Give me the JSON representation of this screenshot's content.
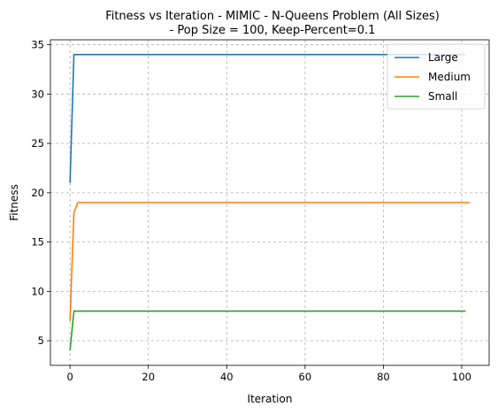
{
  "chart_data": {
    "type": "line",
    "title_lines": [
      "Fitness vs Iteration - MIMIC - N-Queens Problem (All Sizes)",
      "- Pop Size = 100, Keep-Percent=0.1"
    ],
    "xlabel": "Iteration",
    "ylabel": "Fitness",
    "xlim": [
      -5,
      107
    ],
    "ylim": [
      2.5,
      35.5
    ],
    "xticks": [
      0,
      20,
      40,
      60,
      80,
      100
    ],
    "yticks": [
      5,
      10,
      15,
      20,
      25,
      30,
      35
    ],
    "grid": true,
    "legend_position": "top-right",
    "series": [
      {
        "name": "Large",
        "color": "#1f77b4",
        "x": [
          0,
          1,
          101
        ],
        "y": [
          21,
          34,
          34
        ]
      },
      {
        "name": "Medium",
        "color": "#ff7f0e",
        "x": [
          0,
          1,
          2,
          102
        ],
        "y": [
          7,
          18,
          19,
          19
        ]
      },
      {
        "name": "Small",
        "color": "#2ca02c",
        "x": [
          0,
          1,
          101
        ],
        "y": [
          4,
          8,
          8
        ]
      }
    ]
  }
}
